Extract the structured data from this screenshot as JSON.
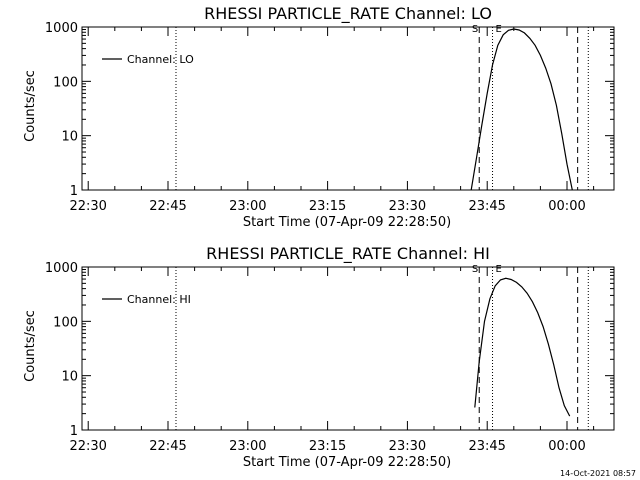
{
  "chart_data": [
    {
      "type": "line",
      "title": "RHESSI PARTICLE_RATE Channel: LO",
      "xlabel": "Start Time (07-Apr-09 22:28:50)",
      "ylabel": "Counts/sec",
      "yscale": "log",
      "xlim": [
        "22:28:50",
        "00:08:50"
      ],
      "ylim": [
        1,
        1000
      ],
      "x_ticks": [
        "22:30",
        "22:45",
        "23:00",
        "23:15",
        "23:30",
        "23:45",
        "00:00"
      ],
      "y_ticks": [
        "1",
        "10",
        "100",
        "1000"
      ],
      "legend": {
        "placement": "top-left",
        "entries": [
          "Channel: LO"
        ]
      },
      "grid": false,
      "vertical_markers": [
        {
          "time": "22:46:30",
          "style": "dotted"
        },
        {
          "time": "23:43:30",
          "style": "dashed",
          "label": "S"
        },
        {
          "time": "23:46:00",
          "style": "dotted",
          "label": "E"
        },
        {
          "time": "00:02:00",
          "style": "dashed"
        },
        {
          "time": "00:04:00",
          "style": "dotted"
        }
      ],
      "series": [
        {
          "name": "Channel: LO",
          "x": [
            "23:42:00",
            "23:43:00",
            "23:44:00",
            "23:45:00",
            "23:46:00",
            "23:47:00",
            "23:48:00",
            "23:49:00",
            "23:50:00",
            "23:51:00",
            "23:52:00",
            "23:53:00",
            "23:54:00",
            "23:55:00",
            "23:56:00",
            "23:57:00",
            "23:58:00",
            "23:59:00",
            "00:00:00",
            "00:01:00"
          ],
          "values": [
            1,
            4,
            16,
            60,
            200,
            460,
            720,
            870,
            920,
            880,
            780,
            620,
            460,
            300,
            175,
            90,
            36,
            11,
            3,
            1
          ]
        }
      ]
    },
    {
      "type": "line",
      "title": "RHESSI PARTICLE_RATE Channel: HI",
      "xlabel": "Start Time (07-Apr-09 22:28:50)",
      "ylabel": "Counts/sec",
      "yscale": "log",
      "xlim": [
        "22:28:50",
        "00:08:50"
      ],
      "ylim": [
        1,
        1000
      ],
      "x_ticks": [
        "22:30",
        "22:45",
        "23:00",
        "23:15",
        "23:30",
        "23:45",
        "00:00"
      ],
      "y_ticks": [
        "1",
        "10",
        "100",
        "1000"
      ],
      "legend": {
        "placement": "top-left",
        "entries": [
          "Channel: HI"
        ]
      },
      "grid": false,
      "vertical_markers": [
        {
          "time": "22:46:30",
          "style": "dotted"
        },
        {
          "time": "23:43:30",
          "style": "dashed",
          "label": "S"
        },
        {
          "time": "23:46:00",
          "style": "dotted",
          "label": "E"
        },
        {
          "time": "00:02:00",
          "style": "dashed"
        },
        {
          "time": "00:04:00",
          "style": "dotted"
        }
      ],
      "series": [
        {
          "name": "Channel: HI",
          "x": [
            "23:42:40",
            "23:43:30",
            "23:44:30",
            "23:45:30",
            "23:46:30",
            "23:47:30",
            "23:48:30",
            "23:49:30",
            "23:50:30",
            "23:51:30",
            "23:52:30",
            "23:53:30",
            "23:54:30",
            "23:55:30",
            "23:56:30",
            "23:57:30",
            "23:58:30",
            "23:59:30",
            "00:00:30"
          ],
          "values": [
            2.6,
            18,
            100,
            260,
            450,
            580,
            620,
            590,
            520,
            430,
            330,
            230,
            145,
            80,
            38,
            16,
            6,
            2.8,
            1.8
          ]
        }
      ]
    }
  ],
  "footer": {
    "timestamp": "14-Oct-2021 08:57"
  }
}
